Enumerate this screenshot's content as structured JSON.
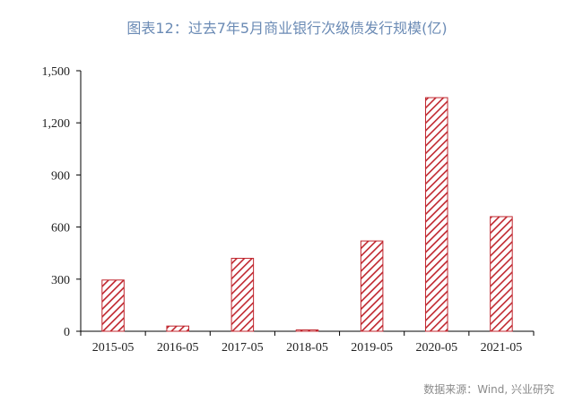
{
  "title": "图表12：过去7年5月商业银行次级债发行规模(亿)",
  "source": "数据来源：Wind, 兴业研究",
  "colors": {
    "bar_stroke": "#c0262e",
    "hatch": "#c0262e",
    "axis": "#000000"
  },
  "chart_data": {
    "type": "bar",
    "title": "图表12：过去7年5月商业银行次级债发行规模(亿)",
    "categories": [
      "2015-05",
      "2016-05",
      "2017-05",
      "2018-05",
      "2019-05",
      "2020-05",
      "2021-05"
    ],
    "values": [
      295,
      30,
      420,
      5,
      520,
      1345,
      660
    ],
    "ylim": [
      0,
      1500
    ],
    "yticks": [
      0,
      300,
      600,
      900,
      1200,
      1500
    ],
    "ytick_labels": [
      "0",
      "300",
      "600",
      "900",
      "1,200",
      "1,500"
    ],
    "grid": false,
    "pattern": "diagonal-hatch"
  }
}
